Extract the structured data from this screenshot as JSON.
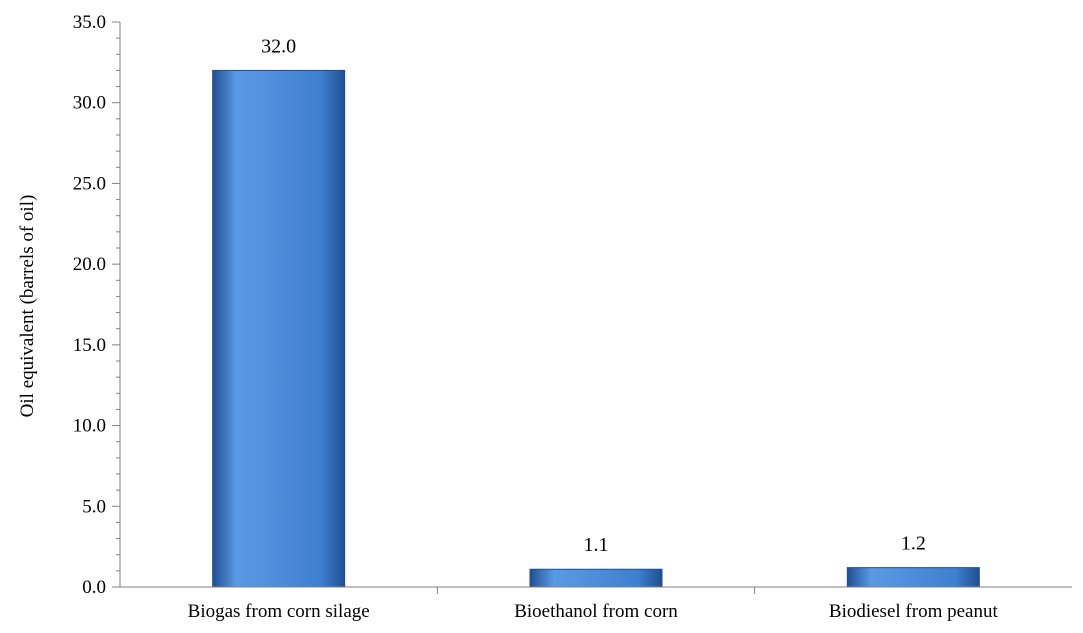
{
  "chart_data": {
    "type": "bar",
    "categories": [
      "Biogas from corn silage",
      "Bioethanol from corn",
      "Biodiesel from peanut"
    ],
    "values": [
      32.0,
      1.1,
      1.2
    ],
    "data_labels": [
      "32.0",
      "1.1",
      "1.2"
    ],
    "title": "",
    "xlabel": "",
    "ylabel": "Oil equivalent (barrels of oil)",
    "ylim": [
      0,
      35
    ],
    "yticks": [
      0,
      5,
      10,
      15,
      20,
      25,
      30,
      35
    ],
    "ytick_labels": [
      "0.0",
      "5.0",
      "10.0",
      "15.0",
      "20.0",
      "25.0",
      "30.0",
      "35.0"
    ],
    "grid": false,
    "legend": "none",
    "colors": {
      "bar_light": "#5a9ae4",
      "bar_mid": "#3f7fd0",
      "bar_dark": "#1f4f93",
      "axis": "#808080"
    }
  }
}
